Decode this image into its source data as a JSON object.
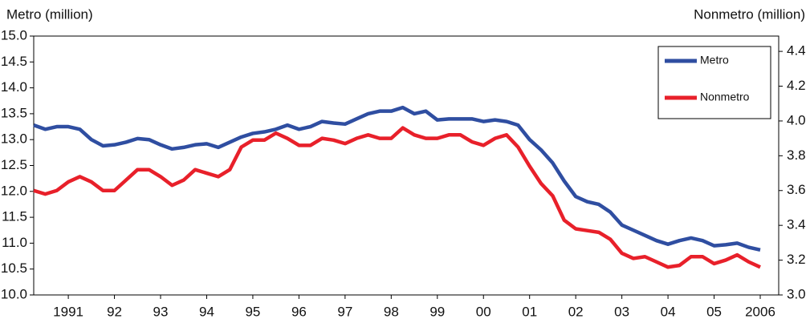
{
  "chart_data": {
    "type": "line",
    "y_label": "Metro (million)",
    "y2_label": "Nonmetro (million)",
    "x": [
      1990.25,
      1990.5,
      1990.75,
      1991,
      1991.25,
      1991.5,
      1991.75,
      1992,
      1992.25,
      1992.5,
      1992.75,
      1993,
      1993.25,
      1993.5,
      1993.75,
      1994,
      1994.25,
      1994.5,
      1994.75,
      1995,
      1995.25,
      1995.5,
      1995.75,
      1996,
      1996.25,
      1996.5,
      1996.75,
      1997,
      1997.25,
      1997.5,
      1997.75,
      1998,
      1998.25,
      1998.5,
      1998.75,
      1999,
      1999.25,
      1999.5,
      1999.75,
      2000,
      2000.25,
      2000.5,
      2000.75,
      2001,
      2001.25,
      2001.5,
      2001.75,
      2002,
      2002.25,
      2002.5,
      2002.75,
      2003,
      2003.25,
      2003.5,
      2003.75,
      2004,
      2004.25,
      2004.5,
      2004.75,
      2005,
      2005.25,
      2005.5,
      2005.75,
      2006
    ],
    "xlim": [
      1990.25,
      2006.4
    ],
    "xticks": [
      {
        "value": 1991,
        "label": "1991"
      },
      {
        "value": 1992,
        "label": "92"
      },
      {
        "value": 1993,
        "label": "93"
      },
      {
        "value": 1994,
        "label": "94"
      },
      {
        "value": 1995,
        "label": "95"
      },
      {
        "value": 1996,
        "label": "96"
      },
      {
        "value": 1997,
        "label": "97"
      },
      {
        "value": 1998,
        "label": "98"
      },
      {
        "value": 1999,
        "label": "99"
      },
      {
        "value": 2000,
        "label": "00"
      },
      {
        "value": 2001,
        "label": "01"
      },
      {
        "value": 2002,
        "label": "02"
      },
      {
        "value": 2003,
        "label": "03"
      },
      {
        "value": 2004,
        "label": "04"
      },
      {
        "value": 2005,
        "label": "05"
      },
      {
        "value": 2006,
        "label": "2006"
      }
    ],
    "ylim": [
      10,
      15
    ],
    "yticks": [
      {
        "value": 10,
        "label": "10.0"
      },
      10.5,
      {
        "value": 11,
        "label": "11.0"
      },
      11.5,
      {
        "value": 12,
        "label": "12.0"
      },
      12.5,
      {
        "value": 13,
        "label": "13.0"
      },
      13.5,
      {
        "value": 14,
        "label": "14.0"
      },
      14.5,
      {
        "value": 15,
        "label": "15.0"
      }
    ],
    "y2lim": [
      3.0,
      4.488
    ],
    "y2ticks": [
      {
        "value": 3,
        "label": "3.0"
      },
      3.2,
      3.4,
      3.6,
      3.8,
      {
        "value": 4,
        "label": "4.0"
      },
      4.2,
      4.4
    ],
    "legend": "upper right",
    "series": [
      {
        "name": "Metro",
        "color": "#2f4ea1",
        "values": [
          13.28,
          13.2,
          13.25,
          13.25,
          13.2,
          13.0,
          12.88,
          12.9,
          12.95,
          13.02,
          13.0,
          12.9,
          12.82,
          12.85,
          12.9,
          12.92,
          12.85,
          12.95,
          13.05,
          13.12,
          13.15,
          13.2,
          13.28,
          13.2,
          13.25,
          13.35,
          13.32,
          13.3,
          13.4,
          13.5,
          13.55,
          13.55,
          13.62,
          13.5,
          13.55,
          13.38,
          13.4,
          13.4,
          13.4,
          13.35,
          13.38,
          13.35,
          13.28,
          13.0,
          12.8,
          12.55,
          12.2,
          11.9,
          11.8,
          11.75,
          11.6,
          11.35,
          11.25,
          11.15,
          11.05,
          10.98,
          11.05,
          11.1,
          11.05,
          10.95,
          10.97,
          11.0,
          10.92,
          10.87
        ]
      },
      {
        "name": "Nonmetro",
        "color": "#e8202a",
        "axis": "y2",
        "values": [
          3.6,
          3.58,
          3.6,
          3.65,
          3.68,
          3.65,
          3.6,
          3.6,
          3.66,
          3.72,
          3.72,
          3.68,
          3.63,
          3.66,
          3.72,
          3.7,
          3.68,
          3.72,
          3.85,
          3.89,
          3.89,
          3.93,
          3.9,
          3.86,
          3.86,
          3.9,
          3.89,
          3.87,
          3.9,
          3.92,
          3.9,
          3.9,
          3.96,
          3.92,
          3.9,
          3.9,
          3.92,
          3.92,
          3.88,
          3.86,
          3.9,
          3.92,
          3.85,
          3.74,
          3.64,
          3.57,
          3.43,
          3.38,
          3.37,
          3.36,
          3.32,
          3.24,
          3.21,
          3.22,
          3.19,
          3.16,
          3.17,
          3.22,
          3.22,
          3.18,
          3.2,
          3.23,
          3.19,
          3.16
        ]
      }
    ]
  }
}
